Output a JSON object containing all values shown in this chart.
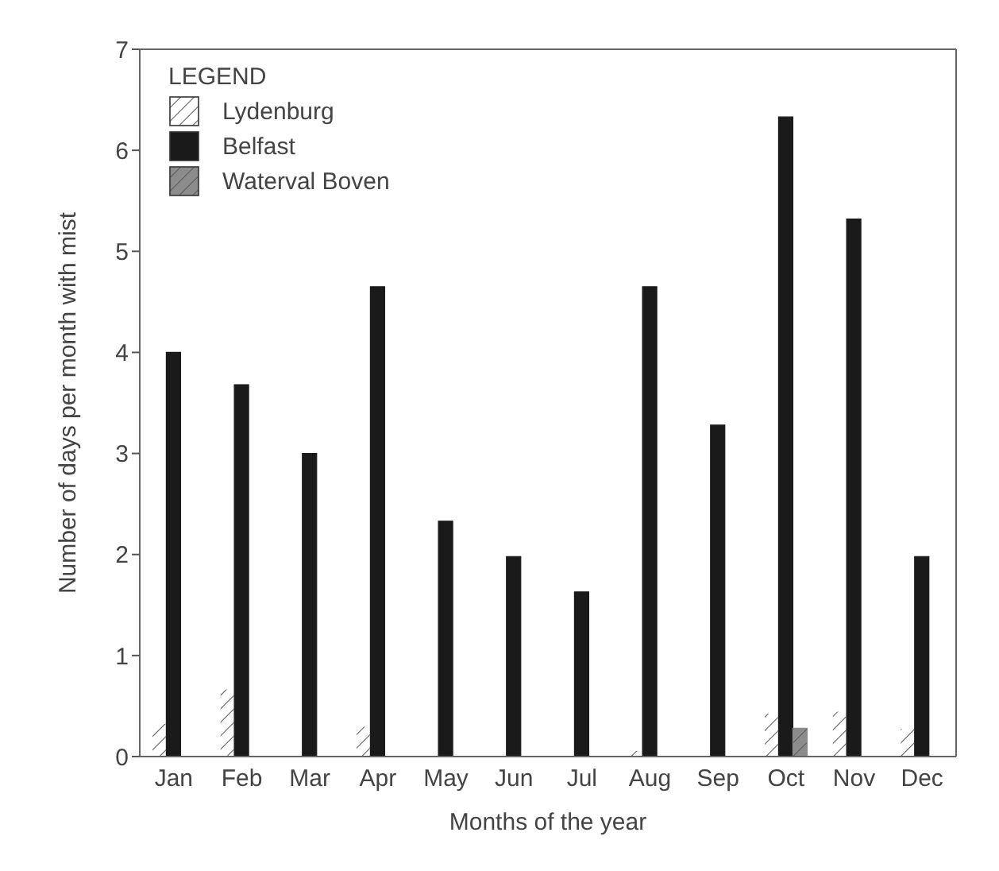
{
  "chart_data": {
    "type": "bar",
    "xlabel": "Months of the year",
    "ylabel": "Number of days per month with mist",
    "legend_title": "LEGEND",
    "legend": "top left",
    "categories": [
      "Jan",
      "Feb",
      "Mar",
      "Apr",
      "May",
      "Jun",
      "Jul",
      "Aug",
      "Sep",
      "Oct",
      "Nov",
      "Dec"
    ],
    "series": [
      {
        "name": "Lydenburg",
        "color": "#ffffff",
        "values": [
          0.33,
          0.67,
          0,
          0.3,
          0,
          0,
          0,
          0.06,
          0,
          0.43,
          0.45,
          0.28
        ]
      },
      {
        "name": "Belfast",
        "color": "#1a1a1a",
        "values": [
          4.0,
          3.68,
          3.0,
          4.65,
          2.33,
          1.98,
          1.63,
          4.65,
          3.28,
          6.33,
          5.32,
          1.98
        ]
      },
      {
        "name": "Waterval Boven",
        "color": "#8c8c8c",
        "values": [
          0,
          0,
          0,
          0,
          0,
          0,
          0,
          0,
          0,
          0.28,
          0,
          0
        ]
      }
    ],
    "ylim": [
      0,
      7
    ],
    "yticks": [
      0,
      1,
      2,
      3,
      4,
      5,
      6,
      7
    ],
    "grid": false
  }
}
